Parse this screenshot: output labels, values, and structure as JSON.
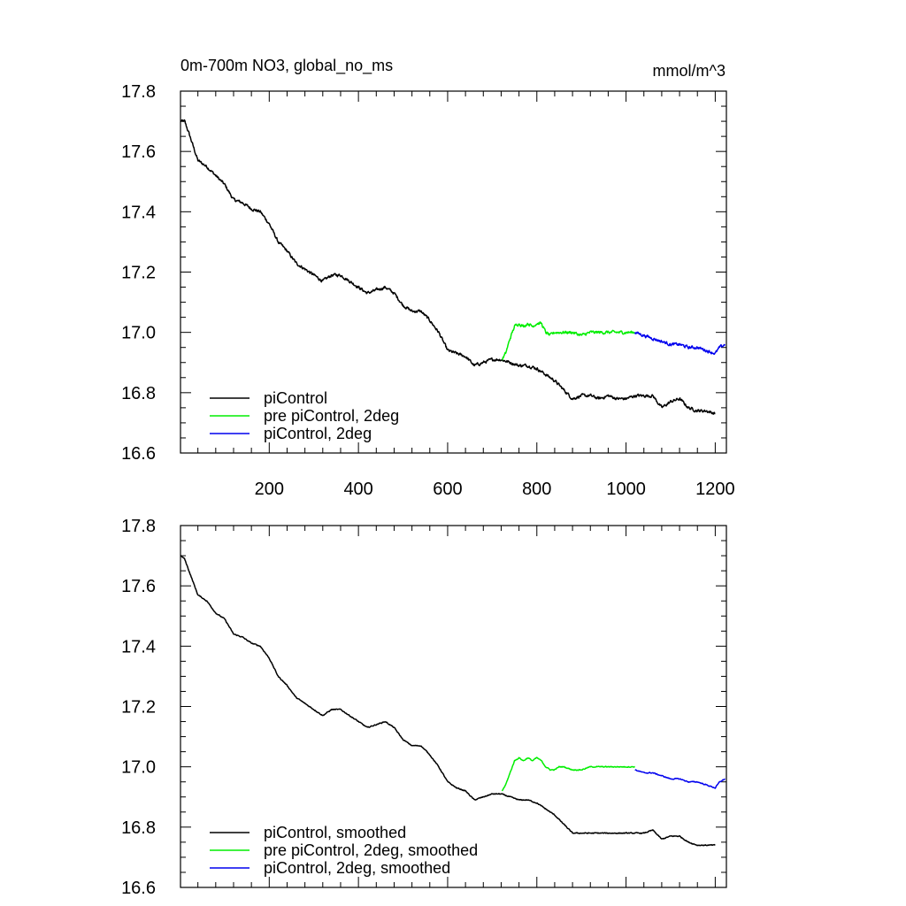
{
  "header": {
    "title": "0m-700m NO3, global_no_ms",
    "units": "mmol/m^3"
  },
  "chart_data": [
    {
      "type": "line",
      "title": "0m-700m NO3, global_no_ms",
      "units": "mmol/m^3",
      "xlabel": "",
      "ylabel": "",
      "xlim": [
        1,
        1225
      ],
      "ylim": [
        16.6,
        17.8
      ],
      "x_ticks": [
        200,
        400,
        600,
        800,
        1000,
        1200
      ],
      "x_tick_labels": [
        "200",
        "400",
        "600",
        "800",
        "1000",
        "1200"
      ],
      "y_ticks": [
        16.6,
        16.8,
        17.0,
        17.2,
        17.4,
        17.6,
        17.8
      ],
      "y_tick_labels": [
        "16.6",
        "16.8",
        "17.0",
        "17.2",
        "17.4",
        "17.6",
        "17.8"
      ],
      "legend_position": "bottom-left",
      "series": [
        {
          "name": "piControl",
          "color": "#000000",
          "noise": 0.009,
          "x": [
            1,
            10,
            20,
            40,
            60,
            80,
            100,
            120,
            140,
            160,
            180,
            200,
            220,
            240,
            260,
            280,
            300,
            320,
            340,
            360,
            380,
            400,
            420,
            440,
            460,
            480,
            500,
            520,
            540,
            560,
            580,
            600,
            620,
            640,
            660,
            680,
            700,
            720,
            740,
            760,
            780,
            800,
            820,
            840,
            860,
            880,
            900,
            920,
            940,
            960,
            980,
            1000,
            1020,
            1040,
            1060,
            1080,
            1100,
            1120,
            1140,
            1160,
            1180,
            1200
          ],
          "values": [
            17.7,
            17.7,
            17.66,
            17.57,
            17.55,
            17.52,
            17.49,
            17.44,
            17.43,
            17.41,
            17.4,
            17.36,
            17.3,
            17.27,
            17.23,
            17.21,
            17.19,
            17.17,
            17.19,
            17.19,
            17.17,
            17.15,
            17.13,
            17.14,
            17.15,
            17.13,
            17.09,
            17.07,
            17.07,
            17.04,
            17.0,
            16.94,
            16.93,
            16.92,
            16.89,
            16.9,
            16.91,
            16.91,
            16.9,
            16.89,
            16.89,
            16.88,
            16.86,
            16.84,
            16.81,
            16.78,
            16.79,
            16.79,
            16.78,
            16.79,
            16.78,
            16.78,
            16.79,
            16.79,
            16.79,
            16.75,
            16.77,
            16.78,
            16.75,
            16.74,
            16.74,
            16.73
          ]
        },
        {
          "name": "pre piControl, 2deg",
          "color": "#00ee00",
          "noise": 0.009,
          "x": [
            722,
            730,
            740,
            750,
            760,
            770,
            780,
            790,
            800,
            810,
            820,
            830,
            840,
            850,
            860,
            880,
            900,
            920,
            940,
            960,
            980,
            1000,
            1020
          ],
          "values": [
            16.91,
            16.93,
            16.98,
            17.02,
            17.03,
            17.02,
            17.03,
            17.02,
            17.03,
            17.03,
            17.0,
            16.99,
            17.0,
            17.0,
            17.0,
            17.0,
            16.99,
            17.0,
            17.0,
            17.0,
            17.0,
            17.0,
            17.0
          ]
        },
        {
          "name": "piControl, 2deg",
          "color": "#0000ee",
          "noise": 0.009,
          "x": [
            1020,
            1040,
            1060,
            1080,
            1100,
            1120,
            1140,
            1160,
            1180,
            1200,
            1210,
            1222
          ],
          "values": [
            17.0,
            16.99,
            16.98,
            16.97,
            16.96,
            16.96,
            16.95,
            16.95,
            16.94,
            16.93,
            16.95,
            16.96
          ]
        }
      ]
    },
    {
      "type": "line",
      "title": "",
      "xlabel": "",
      "ylabel": "",
      "xlim": [
        1,
        1225
      ],
      "ylim": [
        16.6,
        17.8
      ],
      "x_ticks": [
        200,
        400,
        600,
        800,
        1000,
        1200
      ],
      "x_tick_labels": [],
      "y_ticks": [
        16.6,
        16.8,
        17.0,
        17.2,
        17.4,
        17.6,
        17.8
      ],
      "y_tick_labels": [
        "16.6",
        "16.8",
        "17.0",
        "17.2",
        "17.4",
        "17.6",
        "17.8"
      ],
      "legend_position": "bottom-left",
      "series": [
        {
          "name": "piControl, smoothed",
          "color": "#000000",
          "noise": 0.003,
          "x": [
            1,
            10,
            20,
            40,
            60,
            80,
            100,
            120,
            140,
            160,
            180,
            200,
            220,
            240,
            260,
            280,
            300,
            320,
            340,
            360,
            380,
            400,
            420,
            440,
            460,
            480,
            500,
            520,
            540,
            560,
            580,
            600,
            620,
            640,
            660,
            680,
            700,
            720,
            740,
            760,
            780,
            800,
            820,
            840,
            860,
            880,
            900,
            920,
            940,
            960,
            980,
            1000,
            1020,
            1040,
            1060,
            1080,
            1100,
            1120,
            1140,
            1160,
            1180,
            1200
          ],
          "values": [
            17.7,
            17.69,
            17.65,
            17.57,
            17.55,
            17.51,
            17.49,
            17.44,
            17.43,
            17.41,
            17.4,
            17.36,
            17.3,
            17.27,
            17.23,
            17.21,
            17.19,
            17.17,
            17.19,
            17.19,
            17.17,
            17.15,
            17.13,
            17.14,
            17.15,
            17.13,
            17.09,
            17.07,
            17.07,
            17.04,
            17.0,
            16.95,
            16.93,
            16.92,
            16.89,
            16.9,
            16.91,
            16.91,
            16.9,
            16.89,
            16.89,
            16.88,
            16.86,
            16.84,
            16.81,
            16.78,
            16.78,
            16.78,
            16.78,
            16.78,
            16.78,
            16.78,
            16.78,
            16.78,
            16.79,
            16.76,
            16.77,
            16.77,
            16.75,
            16.74,
            16.74,
            16.74
          ]
        },
        {
          "name": "pre piControl, 2deg, smoothed",
          "color": "#00ee00",
          "noise": 0.003,
          "x": [
            722,
            730,
            740,
            750,
            760,
            770,
            780,
            790,
            800,
            810,
            820,
            830,
            840,
            850,
            860,
            880,
            900,
            920,
            940,
            960,
            980,
            1000,
            1020
          ],
          "values": [
            16.92,
            16.94,
            16.98,
            17.02,
            17.03,
            17.02,
            17.03,
            17.02,
            17.03,
            17.02,
            17.0,
            16.99,
            16.99,
            17.0,
            17.0,
            16.99,
            16.99,
            17.0,
            17.0,
            17.0,
            17.0,
            17.0,
            17.0
          ]
        },
        {
          "name": "piControl, 2deg, smoothed",
          "color": "#0000ee",
          "noise": 0.003,
          "x": [
            1020,
            1040,
            1060,
            1080,
            1100,
            1120,
            1140,
            1160,
            1180,
            1200,
            1210,
            1222
          ],
          "values": [
            16.99,
            16.98,
            16.98,
            16.97,
            16.96,
            16.96,
            16.95,
            16.95,
            16.94,
            16.93,
            16.95,
            16.96
          ]
        }
      ]
    }
  ]
}
